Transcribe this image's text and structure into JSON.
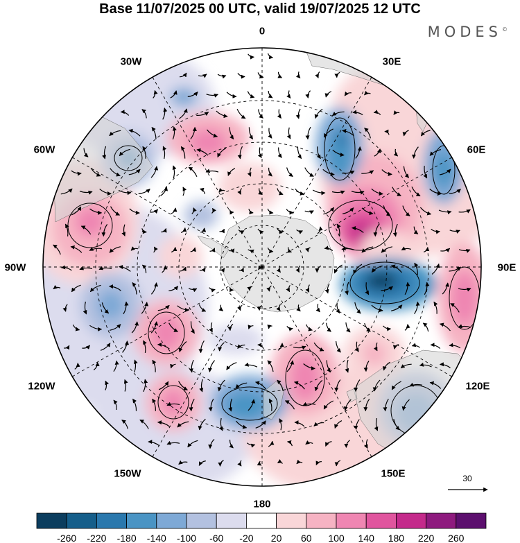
{
  "title": "Base 11/07/2025 00 UTC, valid 19/07/2025 12 UTC",
  "brand": "MODES",
  "brand_mark": "©",
  "longitude_labels": {
    "lon_0": "0",
    "lon_30e": "30E",
    "lon_60e": "60E",
    "lon_90e": "90E",
    "lon_120e": "120E",
    "lon_150e": "150E",
    "lon_180": "180",
    "lon_150w": "150W",
    "lon_120w": "120W",
    "lon_90w": "90W",
    "lon_60w": "60W",
    "lon_30w": "30W"
  },
  "reference_vector": {
    "label": "30"
  },
  "colorbar": {
    "tick_labels": [
      "-260",
      "-220",
      "-180",
      "-140",
      "-100",
      "-60",
      "-20",
      "20",
      "60",
      "100",
      "140",
      "180",
      "220",
      "260"
    ],
    "colors": [
      "#0b3d5e",
      "#155e8a",
      "#2a78ad",
      "#4a94c4",
      "#7ea9d6",
      "#b3c1e0",
      "#dcdcee",
      "#ffffff",
      "#f9d6d8",
      "#f6b3c3",
      "#ef86b2",
      "#e0559e",
      "#c42a8b",
      "#8e1a7e",
      "#5c0f6e"
    ]
  },
  "anomaly_colors": {
    "negative": "#2a78ad",
    "positive": "#c42a8b"
  }
}
